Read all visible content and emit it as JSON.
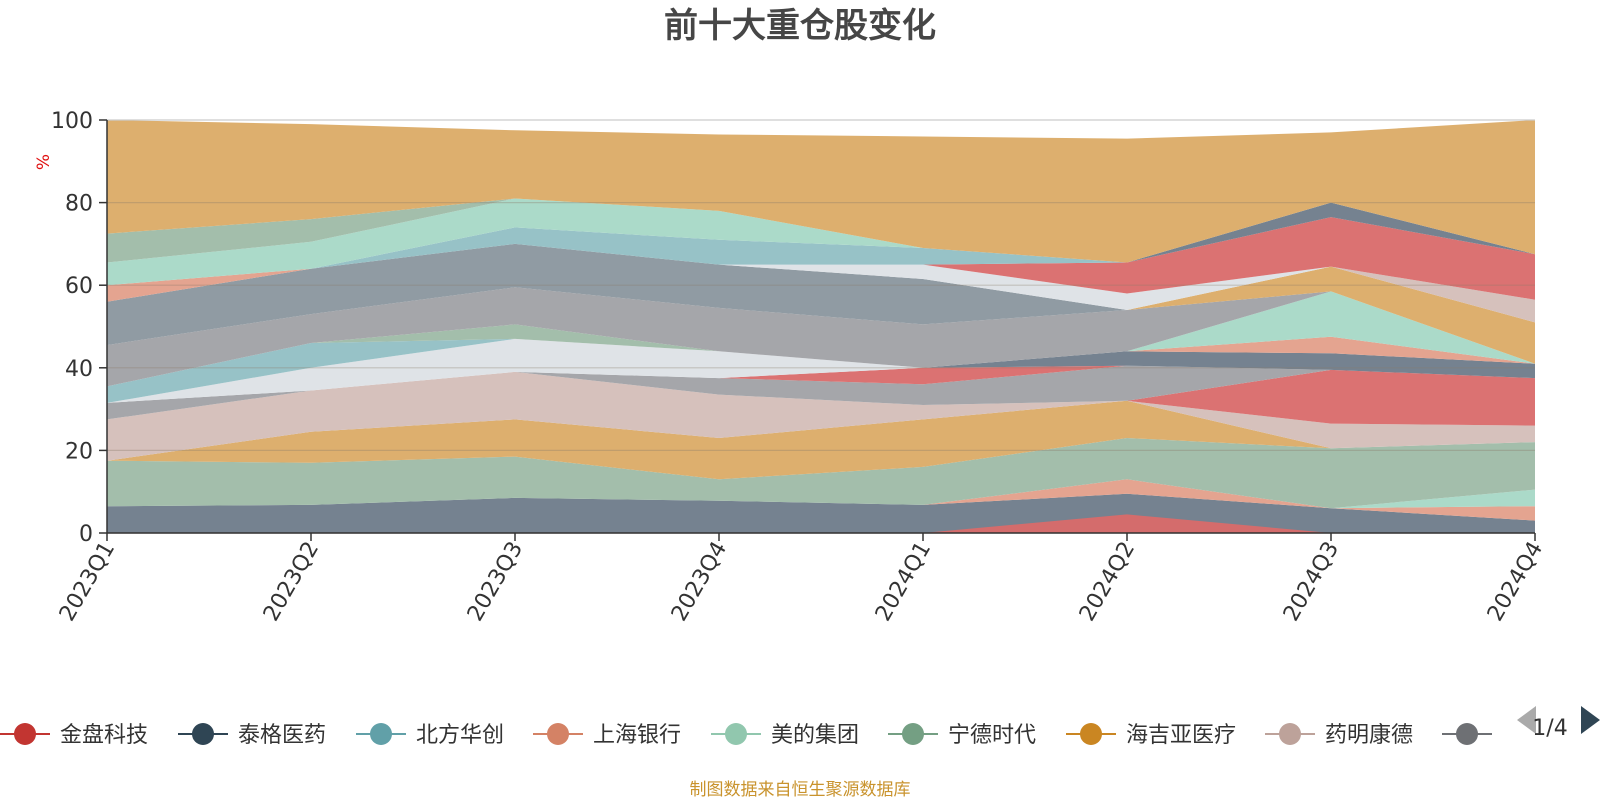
{
  "title": "前十大重仓股变化",
  "y_unit": "%",
  "footer": "制图数据来自恒生聚源数据库",
  "legend": {
    "items": [
      {
        "name": "金盘科技",
        "color": "#c23531"
      },
      {
        "name": "泰格医药",
        "color": "#2f4554"
      },
      {
        "name": "北方华创",
        "color": "#61a0a8"
      },
      {
        "name": "上海银行",
        "color": "#d48265"
      },
      {
        "name": "美的集团",
        "color": "#91c7ae"
      },
      {
        "name": "宁德时代",
        "color": "#749f83"
      },
      {
        "name": "海吉亚医疗",
        "color": "#ca8622"
      },
      {
        "name": "药明康德",
        "color": "#bda29a"
      },
      {
        "name": "",
        "color": "#6e7074"
      }
    ],
    "page": "1/4",
    "prev_icon": "triangle-left-icon",
    "next_icon": "triangle-right-icon"
  },
  "chart_data": {
    "type": "area",
    "stacked": true,
    "x": [
      "2023Q1",
      "2023Q2",
      "2023Q3",
      "2023Q4",
      "2024Q1",
      "2024Q2",
      "2024Q3",
      "2024Q4"
    ],
    "ylim": [
      0,
      100
    ],
    "yticks": [
      0,
      20,
      40,
      60,
      80,
      100
    ],
    "ylabel": "%",
    "grid": true,
    "legend_position": "bottom",
    "bands": [
      {
        "color": "#6e7b8a",
        "lower": [
          0,
          0,
          0,
          0,
          0,
          0,
          0,
          0
        ],
        "upper": [
          6.5,
          6.8,
          8.5,
          7.8,
          6.8,
          9.5,
          6,
          3
        ]
      },
      {
        "color": "#d96a6a",
        "lower": [
          0,
          0,
          0,
          0,
          0,
          0,
          0,
          0
        ],
        "upper": [
          0,
          0,
          0,
          0,
          0,
          4.5,
          0,
          0
        ]
      },
      {
        "color": "#e39f8a",
        "lower": [
          6.5,
          6.8,
          8.5,
          7.8,
          6.8,
          9.5,
          6,
          3
        ],
        "upper": [
          6.5,
          6.8,
          8.5,
          7.8,
          6.8,
          13,
          6,
          6.5
        ]
      },
      {
        "color": "#a7d8c6",
        "lower": [
          6.5,
          6.8,
          8.5,
          7.8,
          6.8,
          13,
          6,
          6.5
        ],
        "upper": [
          6.5,
          6.8,
          8.5,
          7.8,
          6.8,
          13,
          6,
          10.5
        ]
      },
      {
        "color": "#9ebaa6",
        "lower": [
          6.5,
          6.8,
          8.5,
          7.8,
          6.8,
          13,
          6,
          10.5
        ],
        "upper": [
          17.5,
          17,
          18.5,
          13,
          16,
          23,
          20.5,
          22
        ]
      },
      {
        "color": "#dbab66",
        "lower": [
          17.5,
          17,
          18.5,
          13,
          16,
          23,
          20.5,
          22
        ],
        "upper": [
          17.5,
          24.5,
          27.5,
          23,
          27.5,
          32,
          20.5,
          22
        ]
      },
      {
        "color": "#d4beb8",
        "lower": [
          17.5,
          24.5,
          27.5,
          23,
          27.5,
          32,
          20.5,
          22
        ],
        "upper": [
          27.5,
          34.5,
          39,
          33.5,
          31,
          32,
          26.5,
          26
        ]
      },
      {
        "color": "#d96a6a",
        "lower": [
          27.5,
          34.5,
          39,
          33.5,
          31,
          32,
          26.5,
          26
        ],
        "upper": [
          27.5,
          34.5,
          39,
          33.5,
          31,
          32,
          39.5,
          37.5
        ]
      },
      {
        "color": "#a0a1a5",
        "lower": [
          27.5,
          34.5,
          39,
          33.5,
          31,
          32,
          39.5,
          37.5
        ],
        "upper": [
          31.5,
          34.5,
          39,
          37.5,
          36,
          40.5,
          39.5,
          37.5
        ]
      },
      {
        "color": "#d96a6a",
        "lower": [
          31.5,
          34.5,
          39,
          37.5,
          36,
          40.5,
          39.5,
          37.5
        ],
        "upper": [
          31.5,
          34.5,
          39,
          37.5,
          40,
          40.5,
          39.5,
          37.5
        ]
      },
      {
        "color": "#dde1e6",
        "lower": [
          31.5,
          34.5,
          39,
          37.5,
          40,
          40.5,
          39.5,
          37.5
        ],
        "upper": [
          31.5,
          40,
          47,
          44,
          40,
          40.5,
          39.5,
          37.5
        ]
      },
      {
        "color": "#6e7b8a",
        "lower": [
          31.5,
          40,
          47,
          44,
          40,
          40.5,
          39.5,
          37.5
        ],
        "upper": [
          31.5,
          40,
          47,
          44,
          40,
          44,
          43.5,
          41
        ]
      },
      {
        "color": "#91bfc4",
        "lower": [
          31.5,
          40,
          47,
          44,
          40,
          44,
          43.5,
          41
        ],
        "upper": [
          35.5,
          46,
          47,
          44,
          40,
          44,
          43.5,
          41
        ]
      },
      {
        "color": "#9ebaa6",
        "lower": [
          35.5,
          46,
          47,
          44,
          40,
          44,
          43.5,
          41
        ],
        "upper": [
          35.5,
          46,
          50.5,
          44,
          40,
          44,
          43.5,
          41
        ]
      },
      {
        "color": "#e39f8a",
        "lower": [
          35.5,
          46,
          50.5,
          44,
          40,
          44,
          43.5,
          41
        ],
        "upper": [
          35.5,
          46,
          50.5,
          44,
          40,
          44,
          47.5,
          41
        ]
      },
      {
        "color": "#a7d8c6",
        "lower": [
          35.5,
          46,
          50.5,
          44,
          40,
          44,
          47.5,
          41
        ],
        "upper": [
          35.5,
          46,
          50.5,
          44,
          40,
          44,
          58.5,
          41
        ]
      },
      {
        "color": "#a0a1a5",
        "lower": [
          35.5,
          46,
          50.5,
          44,
          40,
          44,
          58.5,
          41
        ],
        "upper": [
          45.5,
          53,
          59.5,
          54.5,
          50.5,
          54,
          58.5,
          41
        ]
      },
      {
        "color": "#dbab66",
        "lower": [
          45.5,
          53,
          59.5,
          54.5,
          50.5,
          54,
          58.5,
          41
        ],
        "upper": [
          45.5,
          53,
          59.5,
          54.5,
          50.5,
          54,
          64.5,
          51
        ]
      },
      {
        "color": "#d4beb8",
        "lower": [
          45.5,
          53,
          59.5,
          54.5,
          50.5,
          54,
          64.5,
          51
        ],
        "upper": [
          45.5,
          53,
          59.5,
          54.5,
          50.5,
          54,
          64.5,
          56.5
        ]
      },
      {
        "color": "#8a969e",
        "lower": [
          45.5,
          53,
          59.5,
          54.5,
          50.5,
          54,
          64.5,
          56.5
        ],
        "upper": [
          56,
          64,
          70,
          65,
          61.5,
          54,
          64.5,
          56.5
        ]
      },
      {
        "color": "#dde1e6",
        "lower": [
          56,
          64,
          70,
          65,
          61.5,
          54,
          64.5,
          56.5
        ],
        "upper": [
          56,
          64,
          70,
          65,
          65,
          58,
          64.5,
          56.5
        ]
      },
      {
        "color": "#e39f8a",
        "lower": [
          56,
          64,
          70,
          65,
          65,
          58,
          64.5,
          56.5
        ],
        "upper": [
          60,
          64,
          70,
          65,
          65,
          58,
          64.5,
          56.5
        ]
      },
      {
        "color": "#d96a6a",
        "lower": [
          56,
          64,
          70,
          65,
          65,
          58,
          64.5,
          56.5
        ],
        "upper": [
          56,
          64,
          70,
          65,
          65,
          65.5,
          76.5,
          67.5
        ]
      },
      {
        "color": "#91bfc4",
        "lower": [
          60,
          64,
          70,
          65,
          65,
          65.5,
          76.5,
          67.5
        ],
        "upper": [
          60,
          64,
          74,
          71,
          69,
          65.5,
          76.5,
          67.5
        ]
      },
      {
        "color": "#6e7b8a",
        "lower": [
          60,
          64,
          74,
          71,
          69,
          65.5,
          76.5,
          67.5
        ],
        "upper": [
          60,
          64,
          74,
          71,
          69,
          65.5,
          80,
          67.5
        ]
      },
      {
        "color": "#a7d8c6",
        "lower": [
          60,
          64,
          74,
          71,
          69,
          65.5,
          80,
          67.5
        ],
        "upper": [
          65.5,
          70.5,
          81,
          78,
          69,
          65.5,
          80,
          67.5
        ]
      },
      {
        "color": "#9ebaa6",
        "lower": [
          65.5,
          70.5,
          81,
          78,
          69,
          65.5,
          80,
          67.5
        ],
        "upper": [
          72.5,
          76,
          81,
          78,
          69,
          65.5,
          80,
          67.5
        ]
      },
      {
        "color": "#dbab66",
        "lower": [
          72.5,
          76,
          81,
          78,
          69,
          65.5,
          80,
          67.5
        ],
        "upper": [
          100,
          99,
          97.5,
          96.5,
          96,
          95.5,
          97,
          100
        ]
      }
    ]
  }
}
